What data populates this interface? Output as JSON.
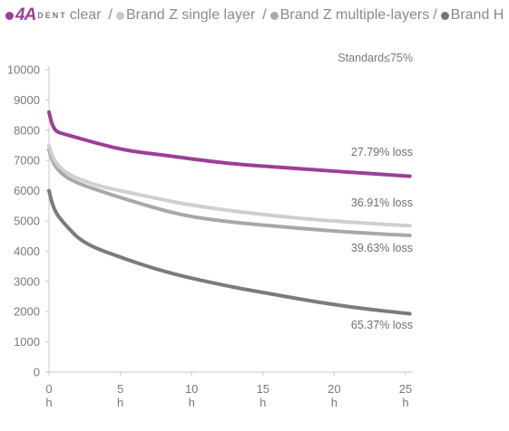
{
  "legend": {
    "brand_number": "4A",
    "brand_small": "DENT",
    "items": [
      {
        "label": "clear",
        "color": "#9b3f96"
      },
      {
        "label": "Brand Z single layer",
        "color": "#c9c9c9"
      },
      {
        "label": "Brand Z multiple-layers",
        "color": "#a9a9a9"
      },
      {
        "label": "Brand H",
        "color": "#777777"
      }
    ]
  },
  "chart_data": {
    "type": "line",
    "annotation": "Standard≤75%",
    "ylim": [
      0,
      10000
    ],
    "xlim": [
      0,
      25
    ],
    "yticks": [
      "0",
      "1000",
      "2000",
      "3000",
      "4000",
      "5000",
      "6000",
      "7000",
      "8000",
      "9000",
      "10000"
    ],
    "xticks": [
      "0",
      "5",
      "10",
      "15",
      "20",
      "25"
    ],
    "xunit": "h",
    "series": [
      {
        "name": "4A DENT clear",
        "color": "#9b3f96",
        "width": 4,
        "end_label": "27.79% loss",
        "x": [
          0,
          0.2,
          0.5,
          1,
          2,
          3.5,
          5.5,
          8,
          10,
          13,
          16,
          19,
          22,
          25.3
        ],
        "y": [
          8600,
          8200,
          7950,
          7880,
          7750,
          7550,
          7320,
          7180,
          7050,
          6880,
          6780,
          6680,
          6580,
          6480
        ]
      },
      {
        "name": "Brand Z single layer",
        "color": "#cfcfcf",
        "width": 4,
        "end_label": "36.91% loss",
        "x": [
          0,
          0.3,
          0.7,
          1.2,
          2,
          3.5,
          5.5,
          8,
          10,
          13,
          16,
          19,
          22,
          25.3
        ],
        "y": [
          7500,
          7050,
          6800,
          6600,
          6400,
          6150,
          5950,
          5700,
          5520,
          5320,
          5160,
          5030,
          4930,
          4840
        ]
      },
      {
        "name": "Brand Z multiple-layers",
        "color": "#a8a8a8",
        "width": 4,
        "end_label": "39.63% loss",
        "x": [
          0,
          0.3,
          0.7,
          1.2,
          2,
          3.5,
          5.5,
          8,
          10,
          13,
          16,
          19,
          22,
          25.3
        ],
        "y": [
          7350,
          6900,
          6650,
          6450,
          6250,
          6000,
          5700,
          5350,
          5130,
          4950,
          4820,
          4700,
          4600,
          4520
        ]
      },
      {
        "name": "Brand H",
        "color": "#7b7b7b",
        "width": 4,
        "end_label": "65.37% loss",
        "x": [
          0,
          0.2,
          0.5,
          1,
          1.5,
          2,
          3,
          5,
          7.5,
          10,
          13,
          16,
          19,
          22,
          25.3
        ],
        "y": [
          6000,
          5600,
          5250,
          4950,
          4700,
          4450,
          4150,
          3800,
          3400,
          3100,
          2800,
          2550,
          2300,
          2100,
          1930
        ]
      }
    ]
  }
}
